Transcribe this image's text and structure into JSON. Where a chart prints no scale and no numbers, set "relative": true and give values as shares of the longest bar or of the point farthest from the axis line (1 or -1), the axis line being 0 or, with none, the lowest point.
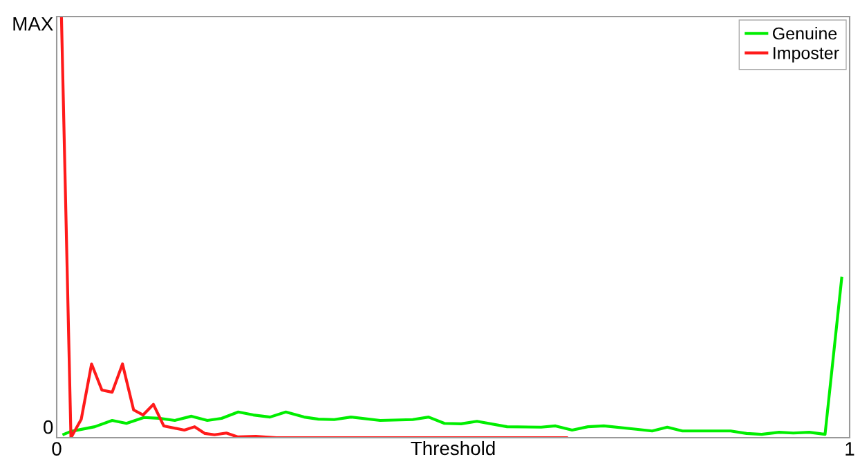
{
  "chart_data": {
    "type": "line",
    "xlabel": "Threshold",
    "xlim": [
      0,
      1
    ],
    "xticks": [
      0,
      1
    ],
    "relative": true,
    "annotations": [
      "MAX",
      "0"
    ],
    "legend": "top right",
    "marker": "none",
    "line_style": "solid",
    "series": [
      {
        "name": "Genuine",
        "color": "#00ee00",
        "x": [
          0.009,
          0.018,
          0.048,
          0.07,
          0.088,
          0.11,
          0.129,
          0.149,
          0.17,
          0.19,
          0.208,
          0.229,
          0.248,
          0.269,
          0.289,
          0.312,
          0.33,
          0.35,
          0.371,
          0.408,
          0.449,
          0.469,
          0.489,
          0.51,
          0.53,
          0.568,
          0.611,
          0.629,
          0.65,
          0.67,
          0.69,
          0.731,
          0.751,
          0.77,
          0.789,
          0.85,
          0.87,
          0.889,
          0.911,
          0.929,
          0.949,
          0.969,
          0.99
        ],
        "values": [
          0.008,
          0.015,
          0.026,
          0.041,
          0.034,
          0.048,
          0.046,
          0.041,
          0.051,
          0.041,
          0.046,
          0.061,
          0.054,
          0.049,
          0.061,
          0.049,
          0.044,
          0.043,
          0.049,
          0.041,
          0.043,
          0.049,
          0.034,
          0.033,
          0.039,
          0.026,
          0.025,
          0.028,
          0.018,
          0.026,
          0.028,
          0.02,
          0.016,
          0.025,
          0.016,
          0.016,
          0.01,
          0.008,
          0.013,
          0.011,
          0.013,
          0.008,
          0.379
        ]
      },
      {
        "name": "Imposter",
        "color": "#ff1a1a",
        "x": [
          0.006,
          0.018,
          0.031,
          0.044,
          0.057,
          0.07,
          0.083,
          0.097,
          0.109,
          0.122,
          0.135,
          0.161,
          0.174,
          0.187,
          0.199,
          0.214,
          0.228,
          0.251,
          0.277,
          0.643
        ],
        "values": [
          1.0,
          0,
          0.044,
          0.175,
          0.113,
          0.108,
          0.175,
          0.066,
          0.054,
          0.079,
          0.028,
          0.018,
          0.026,
          0.01,
          0.007,
          0.011,
          0.002,
          0.003,
          0,
          0
        ]
      }
    ]
  }
}
